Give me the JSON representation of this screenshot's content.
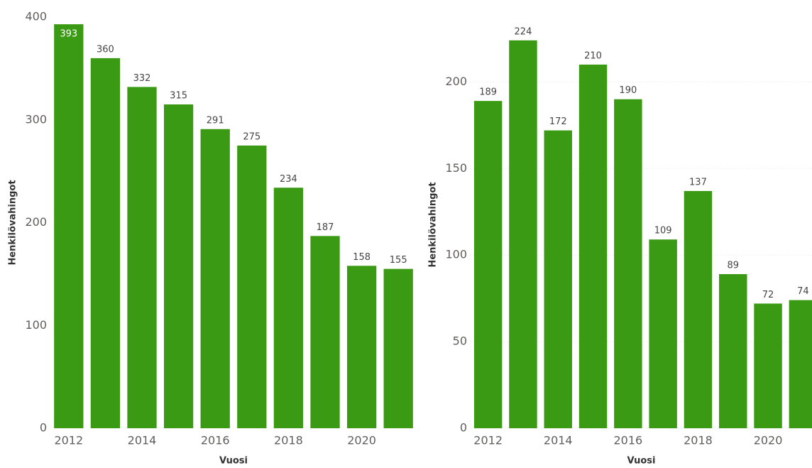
{
  "chart_data": [
    {
      "type": "bar",
      "categories": [
        "2012",
        null,
        "2014",
        null,
        "2016",
        null,
        "2018",
        null,
        "2020",
        null
      ],
      "values": [
        393,
        360,
        332,
        315,
        291,
        275,
        234,
        187,
        158,
        155
      ],
      "color": "#3a9a13",
      "ylim": [
        0,
        400
      ],
      "yticks": [
        0,
        100,
        200,
        300,
        400
      ],
      "grid": false,
      "x_label": "Vuosi",
      "y_label": "Henkilövahingot"
    },
    {
      "type": "bar",
      "categories": [
        "2012",
        null,
        "2014",
        null,
        "2016",
        null,
        "2018",
        null,
        "2020",
        null
      ],
      "values": [
        189,
        224,
        172,
        210,
        190,
        109,
        137,
        89,
        72,
        74
      ],
      "color": "#3a9a13",
      "ylim": [
        0,
        235
      ],
      "yticks": [
        0,
        50,
        100,
        150,
        200
      ],
      "grid": true,
      "x_label": "Vuosi",
      "y_label": "Henkilövahingot"
    }
  ]
}
